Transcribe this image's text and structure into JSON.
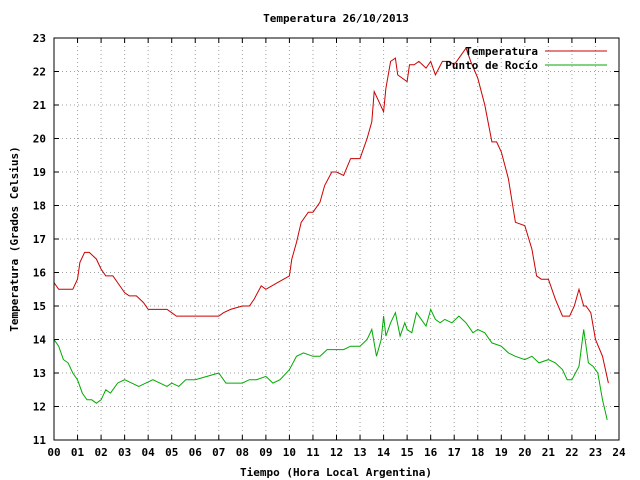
{
  "chart_data": {
    "type": "line",
    "title": "Temperatura 26/10/2013",
    "xlabel": "Tiempo (Hora Local Argentina)",
    "ylabel": "Temperatura (Grados Celsius)",
    "xlim": [
      0,
      24
    ],
    "ylim": [
      11,
      23
    ],
    "grid": true,
    "legend_position": "top-right",
    "x_tick_labels": [
      "00",
      "01",
      "02",
      "03",
      "04",
      "05",
      "06",
      "07",
      "08",
      "09",
      "10",
      "11",
      "12",
      "13",
      "14",
      "15",
      "16",
      "17",
      "18",
      "19",
      "20",
      "21",
      "22",
      "23",
      "24"
    ],
    "y_tick_labels": [
      "11",
      "12",
      "13",
      "14",
      "15",
      "16",
      "17",
      "18",
      "19",
      "20",
      "21",
      "22",
      "23"
    ],
    "series": [
      {
        "name": "Temperatura",
        "color": "#cc0000",
        "x": [
          0,
          0.2,
          0.4,
          0.8,
          1.0,
          1.1,
          1.3,
          1.5,
          1.8,
          2.0,
          2.2,
          2.5,
          2.8,
          3.0,
          3.2,
          3.5,
          3.8,
          4.0,
          4.2,
          4.5,
          4.8,
          5.0,
          5.2,
          5.5,
          6.0,
          6.5,
          7.0,
          7.2,
          7.5,
          8.0,
          8.3,
          8.5,
          8.8,
          9.0,
          9.5,
          10.0,
          10.1,
          10.3,
          10.5,
          10.8,
          11.0,
          11.3,
          11.5,
          11.8,
          12.0,
          12.3,
          12.6,
          13.0,
          13.3,
          13.5,
          13.6,
          14.0,
          14.1,
          14.3,
          14.5,
          14.6,
          15.0,
          15.1,
          15.3,
          15.5,
          15.8,
          16.0,
          16.2,
          16.5,
          16.8,
          17.0,
          17.3,
          17.5,
          17.7,
          18.0,
          18.3,
          18.6,
          18.8,
          19.0,
          19.3,
          19.6,
          20.0,
          20.3,
          20.5,
          20.7,
          21.0,
          21.3,
          21.6,
          21.9,
          22.1,
          22.3,
          22.5,
          22.6,
          22.8,
          23.0,
          23.3,
          23.55
        ],
        "y": [
          15.7,
          15.5,
          15.5,
          15.5,
          15.8,
          16.3,
          16.6,
          16.6,
          16.4,
          16.1,
          15.9,
          15.9,
          15.6,
          15.4,
          15.3,
          15.3,
          15.1,
          14.9,
          14.9,
          14.9,
          14.9,
          14.8,
          14.7,
          14.7,
          14.7,
          14.7,
          14.7,
          14.8,
          14.9,
          15.0,
          15.0,
          15.2,
          15.6,
          15.5,
          15.7,
          15.9,
          16.4,
          16.9,
          17.5,
          17.8,
          17.8,
          18.1,
          18.6,
          19.0,
          19.0,
          18.9,
          19.4,
          19.4,
          20.0,
          20.5,
          21.4,
          20.8,
          21.5,
          22.3,
          22.4,
          21.9,
          21.7,
          22.2,
          22.2,
          22.3,
          22.1,
          22.3,
          21.9,
          22.3,
          22.3,
          22.2,
          22.5,
          22.7,
          22.3,
          21.8,
          21.0,
          19.9,
          19.9,
          19.6,
          18.8,
          17.5,
          17.4,
          16.7,
          15.9,
          15.8,
          15.8,
          15.2,
          14.7,
          14.7,
          15.0,
          15.5,
          15.0,
          15.0,
          14.8,
          14.0,
          13.5,
          12.7
        ]
      },
      {
        "name": "Punto de Rocío",
        "color": "#00aa00",
        "x": [
          0,
          0.2,
          0.4,
          0.6,
          0.8,
          1.0,
          1.2,
          1.4,
          1.6,
          1.8,
          2.0,
          2.2,
          2.4,
          2.7,
          3.0,
          3.3,
          3.6,
          3.9,
          4.2,
          4.5,
          4.8,
          5.0,
          5.3,
          5.6,
          6.0,
          6.5,
          7.0,
          7.3,
          7.6,
          8.0,
          8.3,
          8.6,
          9.0,
          9.3,
          9.6,
          10.0,
          10.3,
          10.6,
          11.0,
          11.3,
          11.6,
          12.0,
          12.3,
          12.6,
          13.0,
          13.3,
          13.5,
          13.7,
          13.9,
          14.0,
          14.1,
          14.3,
          14.5,
          14.7,
          14.9,
          15.0,
          15.2,
          15.4,
          15.6,
          15.8,
          16.0,
          16.2,
          16.4,
          16.6,
          16.9,
          17.2,
          17.5,
          17.8,
          18.0,
          18.3,
          18.6,
          19.0,
          19.3,
          19.6,
          20.0,
          20.3,
          20.6,
          21.0,
          21.3,
          21.6,
          21.8,
          22.0,
          22.3,
          22.5,
          22.7,
          22.9,
          23.1,
          23.3,
          23.5
        ],
        "y": [
          14.0,
          13.8,
          13.4,
          13.3,
          13.0,
          12.8,
          12.4,
          12.2,
          12.2,
          12.1,
          12.2,
          12.5,
          12.4,
          12.7,
          12.8,
          12.7,
          12.6,
          12.7,
          12.8,
          12.7,
          12.6,
          12.7,
          12.6,
          12.8,
          12.8,
          12.9,
          13.0,
          12.7,
          12.7,
          12.7,
          12.8,
          12.8,
          12.9,
          12.7,
          12.8,
          13.1,
          13.5,
          13.6,
          13.5,
          13.5,
          13.7,
          13.7,
          13.7,
          13.8,
          13.8,
          14.0,
          14.3,
          13.5,
          14.0,
          14.7,
          14.1,
          14.5,
          14.8,
          14.1,
          14.5,
          14.3,
          14.2,
          14.8,
          14.6,
          14.4,
          14.9,
          14.6,
          14.5,
          14.6,
          14.5,
          14.7,
          14.5,
          14.2,
          14.3,
          14.2,
          13.9,
          13.8,
          13.6,
          13.5,
          13.4,
          13.5,
          13.3,
          13.4,
          13.3,
          13.1,
          12.8,
          12.8,
          13.2,
          14.3,
          13.3,
          13.2,
          13.0,
          12.2,
          11.6
        ]
      }
    ]
  }
}
